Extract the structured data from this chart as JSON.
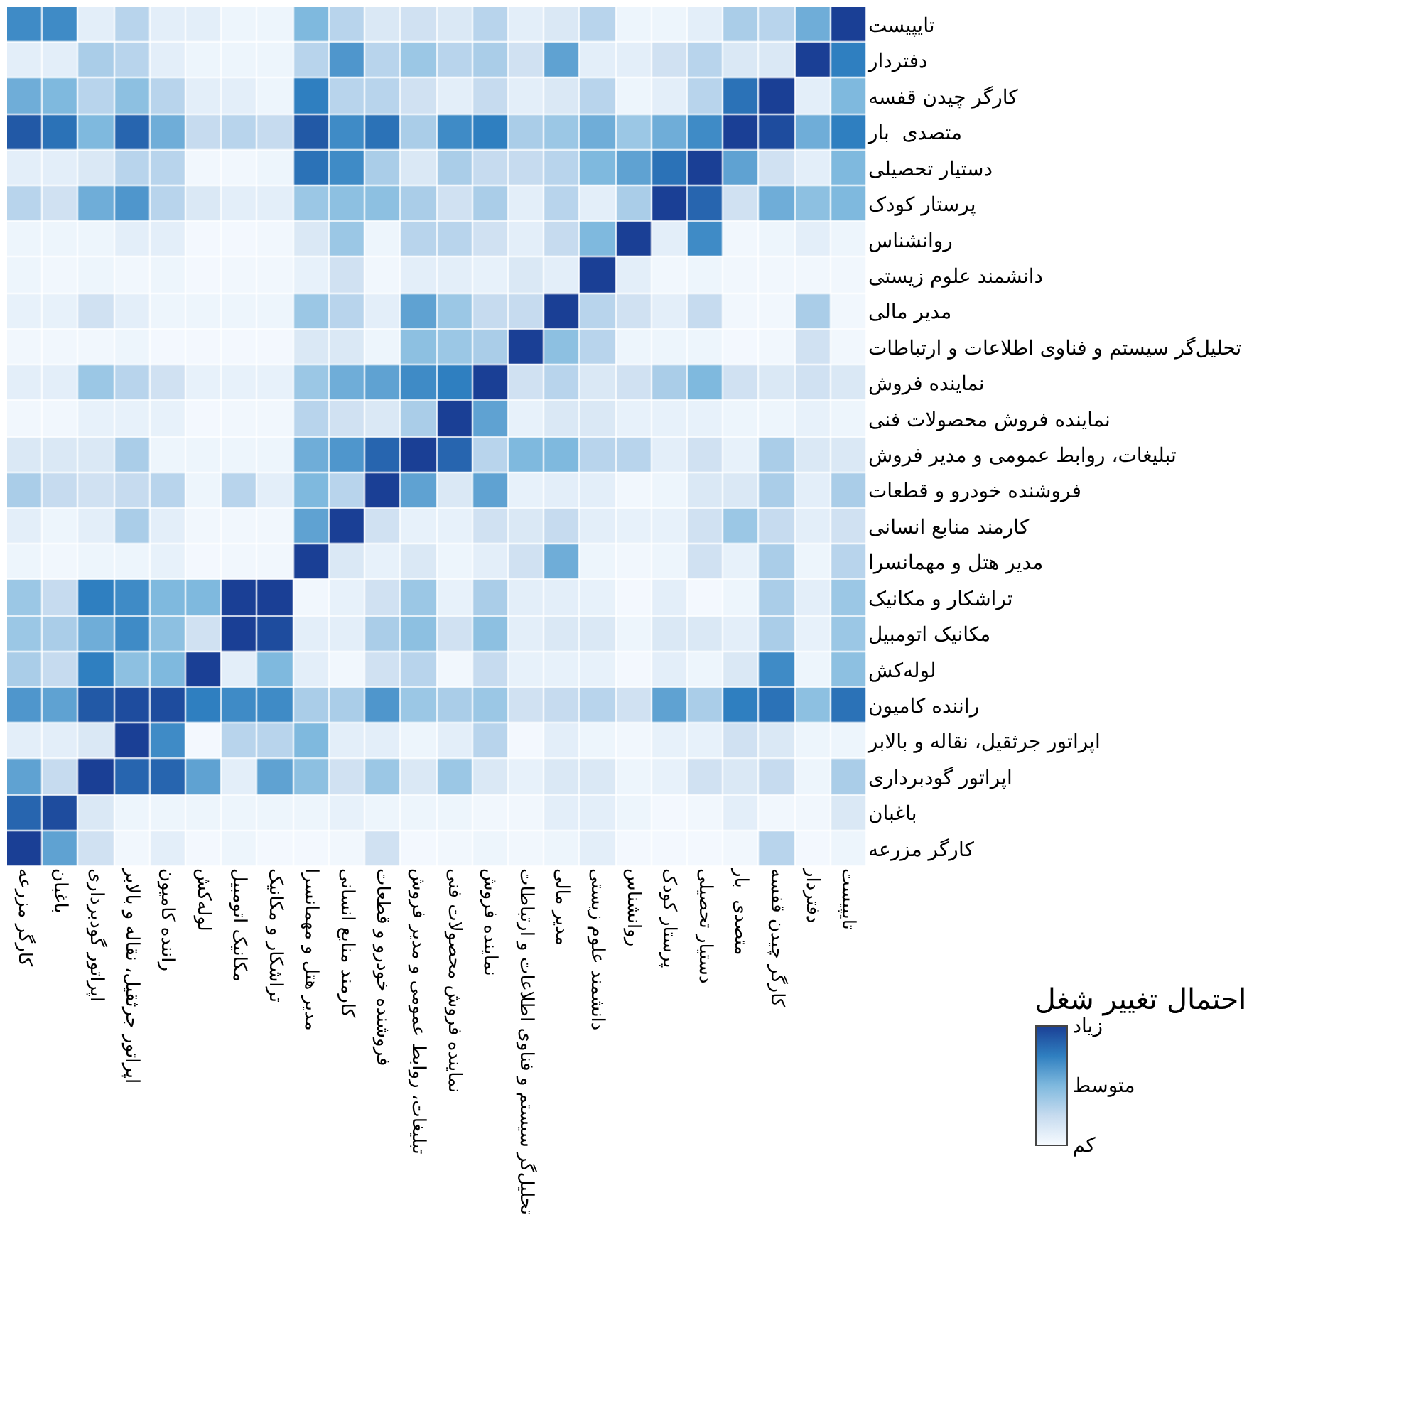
{
  "chart_data": {
    "type": "heatmap",
    "clabel": "احتمال تغییر شغل",
    "categories": [
      "کارگر مزرعه",
      "باغبان",
      "اپراتور گودبرداری",
      "اپراتور جرثقیل، نقاله و بالابر",
      "راننده کامیون",
      "لوله‌کش",
      "مکانیک اتومبیل",
      "تراشکار و مکانیک",
      "مدیر هتل و مهمانسرا",
      "کارمند منابع انسانی",
      "فروشنده خودرو و قطعات",
      "تبلیغات، روابط عمومی و مدیر فروش",
      "نماینده فروش محصولات فنی",
      "نماینده فروش",
      "تحلیل‌گر سیستم و فناوی اطلاعات و ارتباطات",
      "مدیر مالی",
      "دانشمند علوم زیستی",
      "روانشناس",
      "پرستار کودک",
      "دستیار تحصیلی",
      "متصدی  بار",
      "کارگر چیدن قفسه",
      "دفتردار",
      "تایپیست"
    ],
    "y_categories": [
      "تایپیست",
      "دفتردار",
      "کارگر چیدن قفسه",
      "متصدی  بار",
      "دستیار تحصیلی",
      "پرستار کودک",
      "روانشناس",
      "دانشمند علوم زیستی",
      "مدیر مالی",
      "تحلیل‌گر سیستم و فناوی اطلاعات و ارتباطات",
      "نماینده فروش",
      "نماینده فروش محصولات فنی",
      "تبلیغات، روابط عمومی و مدیر فروش",
      "فروشنده خودرو و قطعات",
      "کارمند منابع انسانی",
      "مدیر هتل و مهمانسرا",
      "تراشکار و مکانیک",
      "مکانیک اتومبیل",
      "لوله‌کش",
      "راننده کامیون",
      "اپراتور جرثقیل، نقاله و بالابر",
      "اپراتور گودبرداری",
      "باغبان",
      "کارگر مزرعه"
    ],
    "cells": [
      [
        0.7,
        0.7,
        0.1,
        0.3,
        0.1,
        0.1,
        0.05,
        0.05,
        0.5,
        0.3,
        0.15,
        0.2,
        0.15,
        0.3,
        0.1,
        0.15,
        0.3,
        0.05,
        0.05,
        0.1,
        0.35,
        0.3,
        0.55,
        1
      ],
      [
        0.1,
        0.1,
        0.35,
        0.3,
        0.1,
        0.05,
        0.05,
        0.05,
        0.3,
        0.65,
        0.3,
        0.4,
        0.3,
        0.35,
        0.2,
        0.6,
        0.1,
        0.1,
        0.2,
        0.3,
        0.15,
        0.15,
        1,
        0.75
      ],
      [
        0.55,
        0.5,
        0.3,
        0.45,
        0.3,
        0.1,
        0.1,
        0.05,
        0.75,
        0.3,
        0.3,
        0.2,
        0.1,
        0.25,
        0.1,
        0.15,
        0.3,
        0.05,
        0.1,
        0.3,
        0.8,
        1,
        0.1,
        0.5
      ],
      [
        0.9,
        0.8,
        0.5,
        0.85,
        0.55,
        0.25,
        0.3,
        0.25,
        0.9,
        0.7,
        0.8,
        0.35,
        0.7,
        0.75,
        0.35,
        0.4,
        0.55,
        0.4,
        0.55,
        0.7,
        1,
        0.95,
        0.55,
        0.75
      ],
      [
        0.1,
        0.1,
        0.15,
        0.3,
        0.3,
        0.03,
        0.03,
        0.05,
        0.8,
        0.7,
        0.35,
        0.15,
        0.35,
        0.25,
        0.25,
        0.3,
        0.5,
        0.6,
        0.8,
        1,
        0.6,
        0.2,
        0.1,
        0.5
      ],
      [
        0.3,
        0.2,
        0.55,
        0.65,
        0.3,
        0.15,
        0.1,
        0.1,
        0.4,
        0.45,
        0.45,
        0.35,
        0.2,
        0.35,
        0.1,
        0.3,
        0.1,
        0.35,
        1,
        0.85,
        0.2,
        0.55,
        0.45,
        0.5
      ],
      [
        0.05,
        0.05,
        0.05,
        0.1,
        0.1,
        0.02,
        0.02,
        0.03,
        0.15,
        0.4,
        0.05,
        0.3,
        0.3,
        0.2,
        0.1,
        0.25,
        0.5,
        1,
        0.1,
        0.7,
        0.03,
        0.05,
        0.1,
        0.05
      ],
      [
        0.05,
        0.03,
        0.05,
        0.03,
        0.05,
        0.02,
        0.03,
        0.03,
        0.08,
        0.2,
        0.03,
        0.1,
        0.1,
        0.08,
        0.15,
        0.1,
        1,
        0.1,
        0.03,
        0.05,
        0.03,
        0.03,
        0.03,
        0.03
      ],
      [
        0.08,
        0.08,
        0.2,
        0.1,
        0.05,
        0.05,
        0.05,
        0.05,
        0.4,
        0.3,
        0.1,
        0.6,
        0.4,
        0.25,
        0.25,
        1,
        0.3,
        0.2,
        0.1,
        0.25,
        0.03,
        0.03,
        0.35,
        0.03
      ],
      [
        0.03,
        0.03,
        0.03,
        0.05,
        0.02,
        0.02,
        0.02,
        0.02,
        0.15,
        0.15,
        0.05,
        0.45,
        0.4,
        0.35,
        1,
        0.45,
        0.3,
        0.05,
        0.05,
        0.05,
        0.02,
        0.03,
        0.2,
        0.03
      ],
      [
        0.1,
        0.1,
        0.4,
        0.3,
        0.2,
        0.08,
        0.08,
        0.08,
        0.4,
        0.55,
        0.6,
        0.7,
        0.75,
        1,
        0.2,
        0.3,
        0.15,
        0.2,
        0.35,
        0.5,
        0.2,
        0.15,
        0.2,
        0.15
      ],
      [
        0.03,
        0.03,
        0.08,
        0.08,
        0.08,
        0.02,
        0.03,
        0.03,
        0.3,
        0.2,
        0.15,
        0.35,
        1,
        0.6,
        0.08,
        0.15,
        0.15,
        0.08,
        0.08,
        0.08,
        0.05,
        0.05,
        0.08,
        0.05
      ],
      [
        0.15,
        0.15,
        0.15,
        0.35,
        0.05,
        0.05,
        0.05,
        0.05,
        0.55,
        0.65,
        0.85,
        1,
        0.85,
        0.3,
        0.5,
        0.5,
        0.3,
        0.3,
        0.1,
        0.2,
        0.08,
        0.35,
        0.15,
        0.15
      ],
      [
        0.35,
        0.25,
        0.2,
        0.25,
        0.3,
        0.05,
        0.3,
        0.1,
        0.5,
        0.3,
        1,
        0.6,
        0.15,
        0.6,
        0.08,
        0.1,
        0.1,
        0.03,
        0.05,
        0.15,
        0.15,
        0.35,
        0.1,
        0.35
      ],
      [
        0.1,
        0.05,
        0.1,
        0.35,
        0.1,
        0.03,
        0.03,
        0.03,
        0.6,
        1,
        0.2,
        0.08,
        0.08,
        0.2,
        0.15,
        0.25,
        0.1,
        0.08,
        0.08,
        0.2,
        0.4,
        0.25,
        0.1,
        0.2
      ],
      [
        0.05,
        0.03,
        0.05,
        0.05,
        0.08,
        0.02,
        0.03,
        0.03,
        1,
        0.15,
        0.08,
        0.15,
        0.05,
        0.1,
        0.2,
        0.55,
        0.05,
        0.03,
        0.05,
        0.2,
        0.08,
        0.35,
        0.05,
        0.3
      ],
      [
        0.4,
        0.25,
        0.75,
        0.7,
        0.5,
        0.5,
        1,
        1,
        0.03,
        0.08,
        0.2,
        0.4,
        0.08,
        0.35,
        0.1,
        0.1,
        0.08,
        0.02,
        0.1,
        0.02,
        0.05,
        0.35,
        0.1,
        0.4
      ],
      [
        0.4,
        0.35,
        0.55,
        0.7,
        0.45,
        0.2,
        1,
        0.95,
        0.1,
        0.1,
        0.35,
        0.45,
        0.2,
        0.45,
        0.1,
        0.15,
        0.15,
        0.05,
        0.15,
        0.15,
        0.1,
        0.35,
        0.08,
        0.4
      ],
      [
        0.35,
        0.25,
        0.75,
        0.45,
        0.5,
        1,
        0.1,
        0.5,
        0.1,
        0.03,
        0.2,
        0.3,
        0.03,
        0.25,
        0.08,
        0.08,
        0.08,
        0.02,
        0.1,
        0.05,
        0.15,
        0.7,
        0.05,
        0.45
      ],
      [
        0.65,
        0.6,
        0.9,
        0.95,
        0.95,
        0.75,
        0.7,
        0.7,
        0.35,
        0.35,
        0.65,
        0.4,
        0.35,
        0.4,
        0.2,
        0.25,
        0.3,
        0.2,
        0.6,
        0.35,
        0.75,
        0.8,
        0.45,
        0.8
      ],
      [
        0.1,
        0.1,
        0.15,
        1,
        0.7,
        0.02,
        0.3,
        0.3,
        0.5,
        0.1,
        0.1,
        0.05,
        0.1,
        0.3,
        0.02,
        0.1,
        0.05,
        0.03,
        0.08,
        0.08,
        0.2,
        0.15,
        0.05,
        0.05
      ],
      [
        0.6,
        0.25,
        1,
        0.85,
        0.85,
        0.6,
        0.1,
        0.6,
        0.45,
        0.2,
        0.4,
        0.15,
        0.4,
        0.15,
        0.08,
        0.15,
        0.15,
        0.05,
        0.08,
        0.2,
        0.15,
        0.25,
        0.05,
        0.35
      ],
      [
        0.85,
        0.95,
        0.15,
        0.05,
        0.05,
        0.05,
        0.05,
        0.05,
        0.05,
        0.08,
        0.05,
        0.05,
        0.05,
        0.03,
        0.03,
        0.1,
        0.1,
        0.05,
        0.02,
        0.03,
        0.1,
        0.03,
        0.03,
        0.15
      ],
      [
        1,
        0.6,
        0.2,
        0.03,
        0.1,
        0.02,
        0.05,
        0.02,
        0.02,
        0.03,
        0.2,
        0.02,
        0.03,
        0.05,
        0.03,
        0.05,
        0.1,
        0.02,
        0.02,
        0.02,
        0.03,
        0.3,
        0.02,
        0.05
      ]
    ],
    "clim": [
      0,
      1
    ],
    "cticks": [
      {
        "value": 0,
        "label": "کم"
      },
      {
        "value": 0.5,
        "label": "متوسط"
      },
      {
        "value": 1,
        "label": "زیاد"
      }
    ]
  }
}
